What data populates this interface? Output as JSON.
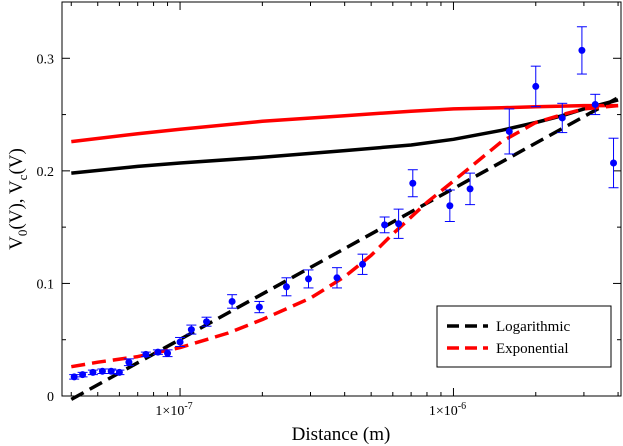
{
  "chart_data": {
    "type": "scatter",
    "title": "",
    "xlabel": "Distance (m)",
    "ylabel": {
      "v0_main": "V",
      "v0_sub": "0",
      "v0_unit": "(V), ",
      "vc_main": "V",
      "vc_sub": "c",
      "vc_unit": "(V)"
    },
    "xscale": "log",
    "xlim": [
      3.7e-08,
      4.1e-06
    ],
    "ylim": [
      0,
      0.35
    ],
    "yticks": [
      {
        "value": 0,
        "label": "0"
      },
      {
        "value": 0.1,
        "label": "0.1"
      },
      {
        "value": 0.2,
        "label": "0.2"
      },
      {
        "value": 0.3,
        "label": "0.3"
      }
    ],
    "xticks": [
      {
        "value": 1e-07,
        "mantissa": "1×10",
        "exponent": "-7"
      },
      {
        "value": 1e-06,
        "mantissa": "1×10",
        "exponent": "-6"
      }
    ],
    "legend_position": "bottom-right",
    "series": [
      {
        "name": "data",
        "kind": "points",
        "color": "#0000ff",
        "x": [
          4.1e-08,
          4.4e-08,
          4.8e-08,
          5.2e-08,
          5.6e-08,
          6e-08,
          6.5e-08,
          7.5e-08,
          8.3e-08,
          9e-08,
          1e-07,
          1.1e-07,
          1.25e-07,
          1.55e-07,
          1.95e-07,
          2.45e-07,
          2.95e-07,
          3.75e-07,
          4.65e-07,
          5.6e-07,
          6.3e-07,
          7.1e-07,
          9.7e-07,
          1.15e-06,
          1.6e-06,
          2e-06,
          2.5e-06,
          2.95e-06,
          3.3e-06,
          3.85e-06
        ],
        "y": [
          0.017,
          0.019,
          0.021,
          0.022,
          0.022,
          0.021,
          0.03,
          0.037,
          0.039,
          0.038,
          0.048,
          0.059,
          0.066,
          0.084,
          0.079,
          0.097,
          0.104,
          0.105,
          0.117,
          0.152,
          0.153,
          0.189,
          0.169,
          0.184,
          0.235,
          0.275,
          0.247,
          0.307,
          0.259,
          0.207
        ],
        "err": [
          0.002,
          0.002,
          0.002,
          0.002,
          0.002,
          0.002,
          0.003,
          0.002,
          0.002,
          0.003,
          0.004,
          0.004,
          0.004,
          0.006,
          0.005,
          0.008,
          0.008,
          0.009,
          0.009,
          0.007,
          0.013,
          0.012,
          0.014,
          0.014,
          0.02,
          0.018,
          0.013,
          0.021,
          0.009,
          0.022
        ]
      },
      {
        "name": "Logarithmic",
        "kind": "dashed-line",
        "color": "#000000",
        "in_legend": true,
        "x": [
          4e-08,
          4e-06
        ],
        "y": [
          -0.003,
          0.265
        ]
      },
      {
        "name": "Exponential",
        "kind": "dashed-line",
        "color": "#ff0000",
        "in_legend": true,
        "x": [
          4e-08,
          5e-08,
          7e-08,
          1e-07,
          1.5e-07,
          2e-07,
          3e-07,
          4e-07,
          5e-07,
          6e-07,
          8e-07,
          1e-06,
          1.5e-06,
          2e-06,
          2.5e-06,
          3e-06,
          4e-06
        ],
        "y": [
          0.026,
          0.03,
          0.035,
          0.043,
          0.056,
          0.068,
          0.087,
          0.106,
          0.125,
          0.144,
          0.172,
          0.191,
          0.226,
          0.243,
          0.25,
          0.255,
          0.258
        ]
      },
      {
        "name": "V0 solid (black)",
        "kind": "solid-line",
        "color": "#000000",
        "in_legend": false,
        "x": [
          4e-08,
          7e-08,
          1e-07,
          2e-07,
          4e-07,
          7e-07,
          1e-06,
          1.5e-06,
          2e-06,
          2.5e-06,
          3e-06,
          4e-06
        ],
        "y": [
          0.198,
          0.204,
          0.207,
          0.212,
          0.218,
          0.223,
          0.228,
          0.236,
          0.243,
          0.249,
          0.255,
          0.263
        ]
      },
      {
        "name": "Vc solid (red)",
        "kind": "solid-line",
        "color": "#ff0000",
        "in_legend": false,
        "x": [
          4e-08,
          7e-08,
          1e-07,
          2e-07,
          4e-07,
          7e-07,
          1e-06,
          1.5e-06,
          2e-06,
          3e-06,
          4e-06
        ],
        "y": [
          0.226,
          0.233,
          0.237,
          0.244,
          0.249,
          0.253,
          0.255,
          0.256,
          0.257,
          0.258,
          0.258
        ]
      }
    ]
  }
}
